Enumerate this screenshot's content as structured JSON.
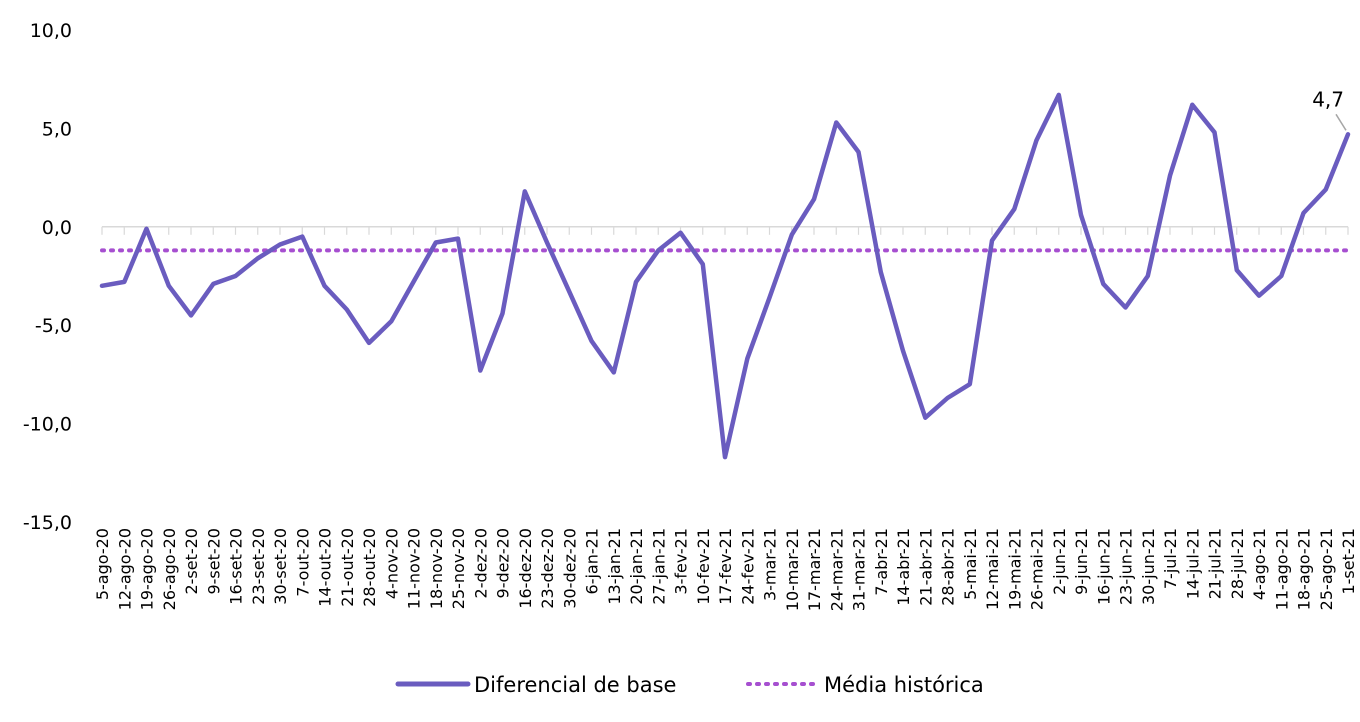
{
  "chart_data": {
    "type": "line",
    "title": "",
    "xlabel": "",
    "ylabel": "",
    "ylim": [
      -15,
      10
    ],
    "yticks": [
      10,
      5,
      0,
      -5,
      -10,
      -15
    ],
    "ytick_labels": [
      "10,0",
      "5,0",
      "0,0",
      "-5,0",
      "-10,0",
      "-15,0"
    ],
    "categories": [
      "5-ago-20",
      "12-ago-20",
      "19-ago-20",
      "26-ago-20",
      "2-set-20",
      "9-set-20",
      "16-set-20",
      "23-set-20",
      "30-set-20",
      "7-out-20",
      "14-out-20",
      "21-out-20",
      "28-out-20",
      "4-nov-20",
      "11-nov-20",
      "18-nov-20",
      "25-nov-20",
      "2-dez-20",
      "9-dez-20",
      "16-dez-20",
      "23-dez-20",
      "30-dez-20",
      "6-jan-21",
      "13-jan-21",
      "20-jan-21",
      "27-jan-21",
      "3-fev-21",
      "10-fev-21",
      "17-fev-21",
      "24-fev-21",
      "3-mar-21",
      "10-mar-21",
      "17-mar-21",
      "24-mar-21",
      "31-mar-21",
      "7-abr-21",
      "14-abr-21",
      "21-abr-21",
      "28-abr-21",
      "5-mai-21",
      "12-mai-21",
      "19-mai-21",
      "26-mai-21",
      "2-jun-21",
      "9-jun-21",
      "16-jun-21",
      "23-jun-21",
      "30-jun-21",
      "7-jul-21",
      "14-jul-21",
      "21-jul-21",
      "28-jul-21",
      "4-ago-21",
      "11-ago-21",
      "18-ago-21",
      "25-ago-21",
      "1-set-21"
    ],
    "series": [
      {
        "name": "Diferencial de base",
        "color": "#6a5cbf",
        "style": "solid",
        "values": [
          -3.0,
          -2.8,
          -0.1,
          -3.0,
          -4.5,
          -2.9,
          -2.5,
          -1.6,
          -0.9,
          -0.5,
          -3.0,
          -4.2,
          -5.9,
          -4.8,
          -2.8,
          -0.8,
          -0.6,
          -7.3,
          -4.4,
          1.8,
          -0.8,
          -3.3,
          -5.8,
          -7.4,
          -2.8,
          -1.2,
          -0.3,
          -1.9,
          -11.7,
          -6.7,
          -3.6,
          -0.4,
          1.4,
          5.3,
          3.8,
          -2.3,
          -6.3,
          -9.7,
          -8.7,
          -8.0,
          -0.7,
          0.9,
          4.4,
          6.7,
          0.6,
          -2.9,
          -4.1,
          -2.5,
          2.6,
          6.2,
          4.8,
          -2.2,
          -3.5,
          -2.5,
          0.7,
          1.9,
          4.7
        ],
        "end_label": "4,7"
      },
      {
        "name": "Média histórica",
        "color": "#a64fd0",
        "style": "dotted",
        "constant": -1.2
      }
    ],
    "grid": false,
    "legend_position": "bottom"
  }
}
